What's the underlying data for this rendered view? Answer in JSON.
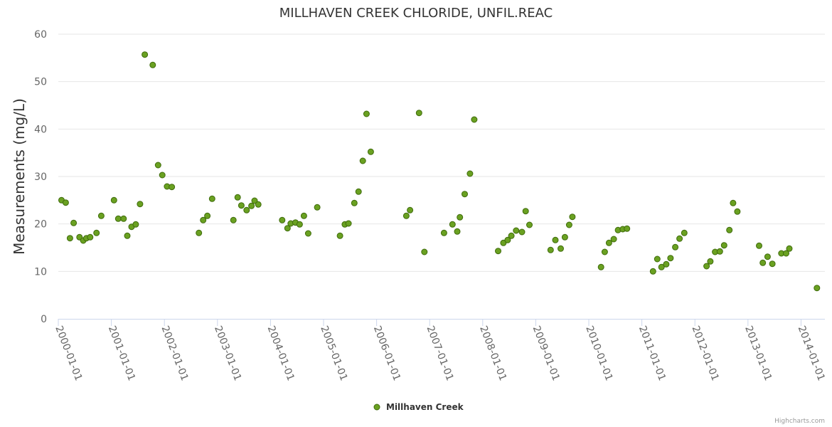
{
  "chart_data": {
    "type": "scatter",
    "title": "MILLHAVEN CREEK CHLORIDE, UNFIL.REAC",
    "ylabel": "Measurements (mg/L)",
    "xlabel": "",
    "ylim": [
      0,
      60
    ],
    "yticks": [
      0,
      10,
      20,
      30,
      40,
      50,
      60
    ],
    "xlim": [
      2000.0,
      2014.45
    ],
    "xticks": [
      {
        "value": 2000,
        "label": "2000-01-01"
      },
      {
        "value": 2001,
        "label": "2001-01-01"
      },
      {
        "value": 2002,
        "label": "2002-01-01"
      },
      {
        "value": 2003,
        "label": "2003-01-01"
      },
      {
        "value": 2004,
        "label": "2004-01-01"
      },
      {
        "value": 2005,
        "label": "2005-01-01"
      },
      {
        "value": 2006,
        "label": "2006-01-01"
      },
      {
        "value": 2007,
        "label": "2007-01-01"
      },
      {
        "value": 2008,
        "label": "2008-01-01"
      },
      {
        "value": 2009,
        "label": "2009-01-01"
      },
      {
        "value": 2010,
        "label": "2010-01-01"
      },
      {
        "value": 2011,
        "label": "2011-01-01"
      },
      {
        "value": 2012,
        "label": "2012-01-01"
      },
      {
        "value": 2013,
        "label": "2013-01-01"
      },
      {
        "value": 2014,
        "label": "2014-01-01"
      }
    ],
    "grid": true,
    "legend_position": "bottom-center",
    "series": [
      {
        "name": "Millhaven Creek",
        "color": "#6aa121",
        "points": [
          [
            2000.06,
            25.0
          ],
          [
            2000.14,
            24.5
          ],
          [
            2000.22,
            17.0
          ],
          [
            2000.29,
            20.2
          ],
          [
            2000.4,
            17.2
          ],
          [
            2000.47,
            16.5
          ],
          [
            2000.53,
            17.0
          ],
          [
            2000.6,
            17.2
          ],
          [
            2000.72,
            18.1
          ],
          [
            2000.81,
            21.7
          ],
          [
            2001.05,
            25.0
          ],
          [
            2001.13,
            21.1
          ],
          [
            2001.23,
            21.1
          ],
          [
            2001.3,
            17.5
          ],
          [
            2001.38,
            19.4
          ],
          [
            2001.46,
            19.9
          ],
          [
            2001.54,
            24.2
          ],
          [
            2001.63,
            55.7
          ],
          [
            2001.78,
            53.5
          ],
          [
            2001.88,
            32.4
          ],
          [
            2001.96,
            30.3
          ],
          [
            2002.05,
            27.9
          ],
          [
            2002.14,
            27.8
          ],
          [
            2002.65,
            18.1
          ],
          [
            2002.73,
            20.8
          ],
          [
            2002.81,
            21.7
          ],
          [
            2002.9,
            25.3
          ],
          [
            2003.3,
            20.8
          ],
          [
            2003.38,
            25.6
          ],
          [
            2003.45,
            23.9
          ],
          [
            2003.55,
            22.9
          ],
          [
            2003.64,
            23.8
          ],
          [
            2003.7,
            24.9
          ],
          [
            2003.77,
            24.1
          ],
          [
            2004.22,
            20.8
          ],
          [
            2004.32,
            19.1
          ],
          [
            2004.38,
            20.1
          ],
          [
            2004.47,
            20.3
          ],
          [
            2004.55,
            19.9
          ],
          [
            2004.63,
            21.7
          ],
          [
            2004.71,
            18.0
          ],
          [
            2004.88,
            23.5
          ],
          [
            2005.31,
            17.5
          ],
          [
            2005.4,
            19.9
          ],
          [
            2005.47,
            20.1
          ],
          [
            2005.58,
            24.4
          ],
          [
            2005.66,
            26.8
          ],
          [
            2005.74,
            33.3
          ],
          [
            2005.81,
            43.2
          ],
          [
            2005.89,
            35.2
          ],
          [
            2006.56,
            21.7
          ],
          [
            2006.63,
            22.9
          ],
          [
            2006.8,
            43.4
          ],
          [
            2006.9,
            14.1
          ],
          [
            2007.27,
            18.1
          ],
          [
            2007.43,
            19.9
          ],
          [
            2007.52,
            18.4
          ],
          [
            2007.57,
            21.4
          ],
          [
            2007.66,
            26.3
          ],
          [
            2007.76,
            30.6
          ],
          [
            2007.84,
            42.0
          ],
          [
            2008.29,
            14.3
          ],
          [
            2008.39,
            16.0
          ],
          [
            2008.47,
            16.6
          ],
          [
            2008.54,
            17.5
          ],
          [
            2008.63,
            18.6
          ],
          [
            2008.74,
            18.3
          ],
          [
            2008.81,
            22.7
          ],
          [
            2008.88,
            19.8
          ],
          [
            2009.28,
            14.5
          ],
          [
            2009.37,
            16.6
          ],
          [
            2009.47,
            14.8
          ],
          [
            2009.55,
            17.2
          ],
          [
            2009.63,
            19.8
          ],
          [
            2009.69,
            21.5
          ],
          [
            2010.23,
            10.9
          ],
          [
            2010.3,
            14.1
          ],
          [
            2010.38,
            16.0
          ],
          [
            2010.47,
            16.8
          ],
          [
            2010.55,
            18.7
          ],
          [
            2010.64,
            18.9
          ],
          [
            2010.72,
            19.0
          ],
          [
            2011.21,
            10.0
          ],
          [
            2011.29,
            12.6
          ],
          [
            2011.37,
            10.9
          ],
          [
            2011.46,
            11.5
          ],
          [
            2011.54,
            12.8
          ],
          [
            2011.63,
            15.1
          ],
          [
            2011.71,
            16.9
          ],
          [
            2011.8,
            18.1
          ],
          [
            2012.22,
            11.1
          ],
          [
            2012.29,
            12.1
          ],
          [
            2012.38,
            14.1
          ],
          [
            2012.47,
            14.2
          ],
          [
            2012.55,
            15.5
          ],
          [
            2012.65,
            18.7
          ],
          [
            2012.72,
            24.4
          ],
          [
            2012.8,
            22.6
          ],
          [
            2013.21,
            15.4
          ],
          [
            2013.28,
            11.8
          ],
          [
            2013.37,
            13.1
          ],
          [
            2013.46,
            11.6
          ],
          [
            2013.63,
            13.8
          ],
          [
            2013.72,
            13.8
          ],
          [
            2013.78,
            14.8
          ],
          [
            2014.3,
            6.5
          ]
        ]
      }
    ]
  },
  "credits": "Highcharts.com"
}
